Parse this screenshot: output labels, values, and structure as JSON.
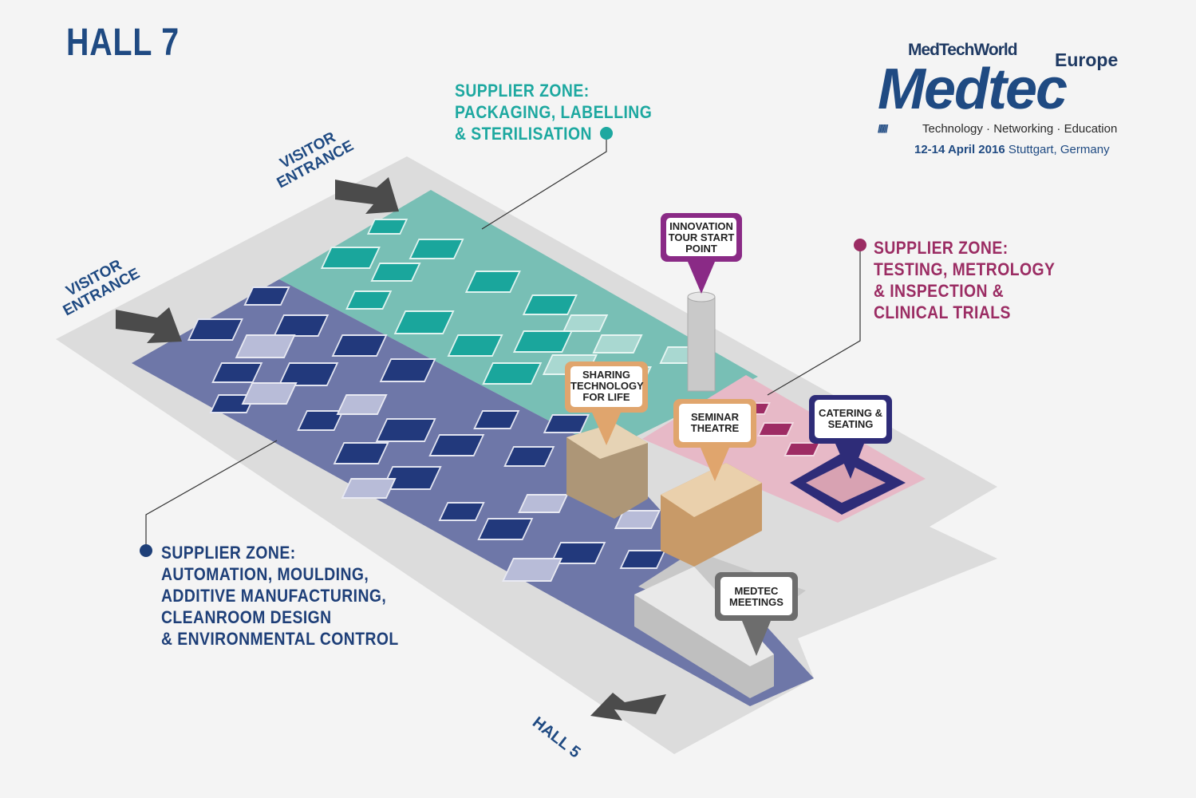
{
  "header": {
    "title": "HALL 7"
  },
  "logo": {
    "brand_top": "MedTechWorld",
    "region": "Europe",
    "name": "Medtec",
    "slashes": "//////",
    "tagline": "Technology · Networking · Education",
    "date_bold": "12-14 April 2016",
    "location": "Stuttgart, Germany"
  },
  "entrances": {
    "top": [
      "VISITOR",
      "ENTRANCE"
    ],
    "left": [
      "VISITOR",
      "ENTRANCE"
    ],
    "exit": "HALL 5"
  },
  "zones": {
    "packaging": {
      "lines": [
        "SUPPLIER ZONE:",
        "PACKAGING, LABELLING",
        "& STERILISATION"
      ],
      "color": "#1da8a0"
    },
    "testing": {
      "lines": [
        "SUPPLIER ZONE:",
        "TESTING, METROLOGY",
        "& INSPECTION &",
        "CLINICAL TRIALS"
      ],
      "color": "#9b2c63"
    },
    "automation": {
      "lines": [
        "SUPPLIER ZONE:",
        "AUTOMATION, MOULDING,",
        "ADDITIVE MANUFACTURING,",
        "CLEANROOM DESIGN",
        "& ENVIRONMENTAL CONTROL"
      ],
      "color": "#1e3f78"
    }
  },
  "callouts": {
    "innovation": {
      "lines": [
        "INNOVATION",
        "TOUR START",
        "POINT"
      ],
      "color": "#8a2a86"
    },
    "sharing": {
      "lines": [
        "SHARING",
        "TECHNOLOGY",
        "FOR LIFE"
      ],
      "color": "#e0a56d"
    },
    "seminar": {
      "lines": [
        "SEMINAR",
        "THEATRE"
      ],
      "color": "#e0a56d"
    },
    "catering": {
      "lines": [
        "CATERING &",
        "SEATING"
      ],
      "color": "#2e2c78"
    },
    "meetings": {
      "lines": [
        "MEDTEC",
        "MEETINGS"
      ],
      "color": "#6d6d6d"
    }
  }
}
